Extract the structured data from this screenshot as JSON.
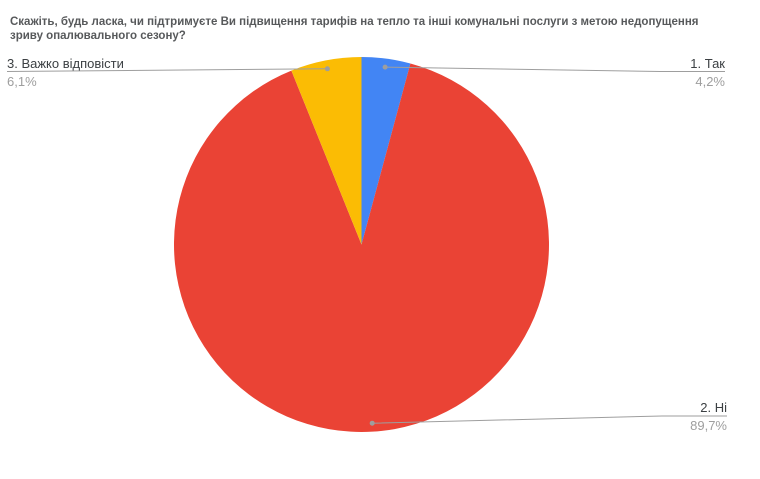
{
  "chart": {
    "title": "Скажіть, будь ласка, чи підтримуєте Ви підвищення тарифів на тепло та інші комунальні послуги з метою недопущення зриву опалювального сезону?"
  },
  "chart_data": {
    "type": "pie",
    "title": "Скажіть, будь ласка, чи підтримуєте Ви підвищення тарифів на тепло та інші комунальні послуги з метою недопущення зриву опалювального сезону?",
    "legend_position": "labeled-callouts",
    "start_angle_deg": 0,
    "direction": "clockwise-from-top",
    "slices": [
      {
        "label": "1. Так",
        "value": 4.2,
        "pct_label": "4,2%",
        "color": "#4285F4"
      },
      {
        "label": "2. Ні",
        "value": 89.7,
        "pct_label": "89,7%",
        "color": "#EA4335"
      },
      {
        "label": "3. Важко відповісти",
        "value": 6.1,
        "pct_label": "6,1%",
        "color": "#FBBC04"
      }
    ],
    "colors": {
      "leader_line": "#9e9e9e",
      "label_text": "#3c4043",
      "pct_text": "#9e9e9e",
      "title_text": "#57595b",
      "background": "#ffffff"
    }
  }
}
